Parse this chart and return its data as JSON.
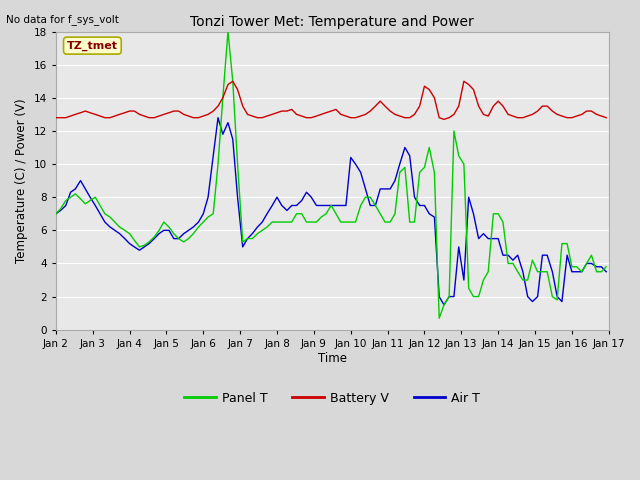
{
  "title": "Tonzi Tower Met: Temperature and Power",
  "ylabel": "Temperature (C) / Power (V)",
  "xlabel": "Time",
  "top_left_text": "No data for f_sys_volt",
  "annotation_box": "TZ_tmet",
  "ylim": [
    0,
    18
  ],
  "yticks": [
    0,
    2,
    4,
    6,
    8,
    10,
    12,
    14,
    16,
    18
  ],
  "xtick_labels": [
    "Jan 2",
    "Jan 3",
    "Jan 4",
    "Jan 5",
    "Jan 6",
    "Jan 7",
    "Jan 8",
    "Jan 9",
    "Jan 10",
    "Jan 11",
    "Jan 12",
    "Jan 13",
    "Jan 14",
    "Jan 15",
    "Jan 16",
    "Jan 17"
  ],
  "colors": {
    "panel_t": "#00cc00",
    "battery_v": "#cc0000",
    "air_t": "#0000cc",
    "fig_bg": "#d8d8d8",
    "plot_bg": "#e8e8e8"
  },
  "legend": [
    {
      "label": "Panel T",
      "color": "#00cc00"
    },
    {
      "label": "Battery V",
      "color": "#cc0000"
    },
    {
      "label": "Air T",
      "color": "#0000cc"
    }
  ],
  "panel_t_x": [
    0,
    0.13,
    0.27,
    0.4,
    0.53,
    0.67,
    0.8,
    0.93,
    1.07,
    1.2,
    1.33,
    1.47,
    1.6,
    1.73,
    1.87,
    2.0,
    2.13,
    2.27,
    2.4,
    2.53,
    2.67,
    2.8,
    2.93,
    3.07,
    3.2,
    3.33,
    3.47,
    3.6,
    3.73,
    3.87,
    4.0,
    4.13,
    4.27,
    4.4,
    4.53,
    4.67,
    4.8,
    4.93,
    5.07,
    5.2,
    5.33,
    5.47,
    5.6,
    5.73,
    5.87,
    6.0,
    6.13,
    6.27,
    6.4,
    6.53,
    6.67,
    6.8,
    6.93,
    7.07,
    7.2,
    7.33,
    7.47,
    7.6,
    7.73,
    7.87,
    8.0,
    8.13,
    8.27,
    8.4,
    8.53,
    8.67,
    8.8,
    8.93,
    9.07,
    9.2,
    9.33,
    9.47,
    9.6,
    9.73,
    9.87,
    10.0,
    10.13,
    10.27,
    10.4,
    10.53,
    10.67,
    10.8,
    10.93,
    11.07,
    11.2,
    11.33,
    11.47,
    11.6,
    11.73,
    11.87,
    12.0,
    12.13,
    12.27,
    12.4,
    12.53,
    12.67,
    12.8,
    12.93,
    13.07,
    13.2,
    13.33,
    13.47,
    13.6,
    13.73,
    13.87,
    14.0,
    14.13,
    14.27,
    14.4,
    14.53,
    14.67,
    14.8,
    14.93
  ],
  "panel_t_y": [
    7.0,
    7.3,
    7.8,
    8.0,
    8.2,
    7.9,
    7.6,
    7.8,
    8.0,
    7.5,
    7.0,
    6.8,
    6.5,
    6.2,
    6.0,
    5.8,
    5.4,
    5.0,
    5.1,
    5.3,
    5.6,
    6.0,
    6.5,
    6.2,
    5.8,
    5.5,
    5.3,
    5.5,
    5.8,
    6.2,
    6.5,
    6.8,
    7.0,
    10.0,
    14.0,
    18.0,
    15.0,
    10.0,
    5.3,
    5.5,
    5.5,
    5.8,
    6.0,
    6.2,
    6.5,
    6.5,
    6.5,
    6.5,
    6.5,
    7.0,
    7.0,
    6.5,
    6.5,
    6.5,
    6.8,
    7.0,
    7.5,
    7.0,
    6.5,
    6.5,
    6.5,
    6.5,
    7.5,
    8.0,
    8.0,
    7.5,
    7.0,
    6.5,
    6.5,
    7.0,
    9.5,
    9.8,
    6.5,
    6.5,
    9.5,
    9.8,
    11.0,
    9.5,
    0.7,
    1.5,
    2.0,
    12.0,
    10.5,
    10.0,
    2.5,
    2.0,
    2.0,
    3.0,
    3.5,
    7.0,
    7.0,
    6.5,
    4.0,
    4.0,
    3.5,
    3.0,
    3.0,
    4.2,
    3.5,
    3.5,
    3.5,
    2.0,
    1.8,
    5.2,
    5.2,
    3.8,
    3.8,
    3.5,
    4.0,
    4.5,
    3.5,
    3.5,
    3.8
  ],
  "battery_v_x": [
    0,
    0.13,
    0.27,
    0.4,
    0.53,
    0.67,
    0.8,
    0.93,
    1.07,
    1.2,
    1.33,
    1.47,
    1.6,
    1.73,
    1.87,
    2.0,
    2.13,
    2.27,
    2.4,
    2.53,
    2.67,
    2.8,
    2.93,
    3.07,
    3.2,
    3.33,
    3.47,
    3.6,
    3.73,
    3.87,
    4.0,
    4.13,
    4.27,
    4.4,
    4.53,
    4.67,
    4.8,
    4.93,
    5.07,
    5.2,
    5.33,
    5.47,
    5.6,
    5.73,
    5.87,
    6.0,
    6.13,
    6.27,
    6.4,
    6.53,
    6.67,
    6.8,
    6.93,
    7.07,
    7.2,
    7.33,
    7.47,
    7.6,
    7.73,
    7.87,
    8.0,
    8.13,
    8.27,
    8.4,
    8.53,
    8.67,
    8.8,
    8.93,
    9.07,
    9.2,
    9.33,
    9.47,
    9.6,
    9.73,
    9.87,
    10.0,
    10.13,
    10.27,
    10.4,
    10.53,
    10.67,
    10.8,
    10.93,
    11.07,
    11.2,
    11.33,
    11.47,
    11.6,
    11.73,
    11.87,
    12.0,
    12.13,
    12.27,
    12.4,
    12.53,
    12.67,
    12.8,
    12.93,
    13.07,
    13.2,
    13.33,
    13.47,
    13.6,
    13.73,
    13.87,
    14.0,
    14.13,
    14.27,
    14.4,
    14.53,
    14.67,
    14.8,
    14.93
  ],
  "battery_v_y": [
    12.8,
    12.8,
    12.8,
    12.9,
    13.0,
    13.1,
    13.2,
    13.1,
    13.0,
    12.9,
    12.8,
    12.8,
    12.9,
    13.0,
    13.1,
    13.2,
    13.2,
    13.0,
    12.9,
    12.8,
    12.8,
    12.9,
    13.0,
    13.1,
    13.2,
    13.2,
    13.0,
    12.9,
    12.8,
    12.8,
    12.9,
    13.0,
    13.2,
    13.5,
    14.0,
    14.8,
    15.0,
    14.5,
    13.5,
    13.0,
    12.9,
    12.8,
    12.8,
    12.9,
    13.0,
    13.1,
    13.2,
    13.2,
    13.3,
    13.0,
    12.9,
    12.8,
    12.8,
    12.9,
    13.0,
    13.1,
    13.2,
    13.3,
    13.0,
    12.9,
    12.8,
    12.8,
    12.9,
    13.0,
    13.2,
    13.5,
    13.8,
    13.5,
    13.2,
    13.0,
    12.9,
    12.8,
    12.8,
    13.0,
    13.5,
    14.7,
    14.5,
    14.0,
    12.8,
    12.7,
    12.8,
    13.0,
    13.5,
    15.0,
    14.8,
    14.5,
    13.5,
    13.0,
    12.9,
    13.5,
    13.8,
    13.5,
    13.0,
    12.9,
    12.8,
    12.8,
    12.9,
    13.0,
    13.2,
    13.5,
    13.5,
    13.2,
    13.0,
    12.9,
    12.8,
    12.8,
    12.9,
    13.0,
    13.2,
    13.2,
    13.0,
    12.9,
    12.8
  ],
  "air_t_x": [
    0,
    0.13,
    0.27,
    0.4,
    0.53,
    0.67,
    0.8,
    0.93,
    1.07,
    1.2,
    1.33,
    1.47,
    1.6,
    1.73,
    1.87,
    2.0,
    2.13,
    2.27,
    2.4,
    2.53,
    2.67,
    2.8,
    2.93,
    3.07,
    3.2,
    3.33,
    3.47,
    3.6,
    3.73,
    3.87,
    4.0,
    4.13,
    4.27,
    4.4,
    4.53,
    4.67,
    4.8,
    4.93,
    5.07,
    5.2,
    5.33,
    5.47,
    5.6,
    5.73,
    5.87,
    6.0,
    6.13,
    6.27,
    6.4,
    6.53,
    6.67,
    6.8,
    6.93,
    7.07,
    7.2,
    7.33,
    7.47,
    7.6,
    7.73,
    7.87,
    8.0,
    8.13,
    8.27,
    8.4,
    8.53,
    8.67,
    8.8,
    8.93,
    9.07,
    9.2,
    9.33,
    9.47,
    9.6,
    9.73,
    9.87,
    10.0,
    10.13,
    10.27,
    10.4,
    10.53,
    10.67,
    10.8,
    10.93,
    11.07,
    11.2,
    11.33,
    11.47,
    11.6,
    11.73,
    11.87,
    12.0,
    12.13,
    12.27,
    12.4,
    12.53,
    12.67,
    12.8,
    12.93,
    13.07,
    13.2,
    13.33,
    13.47,
    13.6,
    13.73,
    13.87,
    14.0,
    14.13,
    14.27,
    14.4,
    14.53,
    14.67,
    14.8,
    14.93
  ],
  "air_t_y": [
    7.0,
    7.2,
    7.5,
    8.3,
    8.5,
    9.0,
    8.5,
    8.0,
    7.5,
    7.0,
    6.5,
    6.2,
    6.0,
    5.8,
    5.5,
    5.2,
    5.0,
    4.8,
    5.0,
    5.2,
    5.5,
    5.8,
    6.0,
    6.0,
    5.5,
    5.5,
    5.8,
    6.0,
    6.2,
    6.5,
    7.0,
    8.0,
    10.5,
    12.8,
    11.8,
    12.5,
    11.5,
    8.0,
    5.0,
    5.5,
    5.8,
    6.2,
    6.5,
    7.0,
    7.5,
    8.0,
    7.5,
    7.2,
    7.5,
    7.5,
    7.8,
    8.3,
    8.0,
    7.5,
    7.5,
    7.5,
    7.5,
    7.5,
    7.5,
    7.5,
    10.4,
    10.0,
    9.5,
    8.5,
    7.5,
    7.5,
    8.5,
    8.5,
    8.5,
    9.0,
    10.0,
    11.0,
    10.5,
    8.0,
    7.5,
    7.5,
    7.0,
    6.8,
    2.0,
    1.5,
    2.0,
    2.0,
    5.0,
    3.0,
    8.0,
    7.0,
    5.5,
    5.8,
    5.5,
    5.5,
    5.5,
    4.5,
    4.5,
    4.2,
    4.5,
    3.5,
    2.0,
    1.7,
    2.0,
    4.5,
    4.5,
    3.5,
    2.0,
    1.7,
    4.5,
    3.5,
    3.5,
    3.5,
    4.0,
    4.0,
    3.8,
    3.8,
    3.5
  ]
}
